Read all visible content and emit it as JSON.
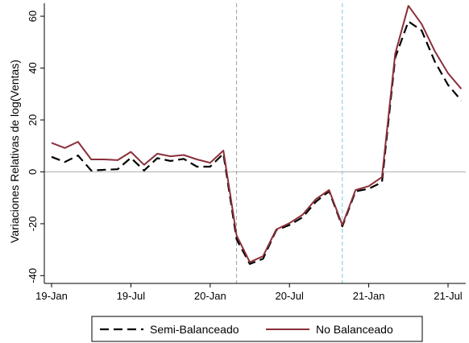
{
  "chart_data": {
    "type": "line",
    "title": "",
    "xlabel": "",
    "ylabel": "Variaciones Relativas de log(Ventas)",
    "x": [
      "2019-01",
      "2019-02",
      "2019-03",
      "2019-04",
      "2019-05",
      "2019-06",
      "2019-07",
      "2019-08",
      "2019-09",
      "2019-10",
      "2019-11",
      "2019-12",
      "2020-01",
      "2020-02",
      "2020-03",
      "2020-04",
      "2020-05",
      "2020-06",
      "2020-07",
      "2020-08",
      "2020-09",
      "2020-10",
      "2020-11",
      "2020-12",
      "2021-01",
      "2021-02",
      "2021-03",
      "2021-04",
      "2021-05",
      "2021-06",
      "2021-07",
      "2021-08"
    ],
    "x_ticks": [
      "19-Jan",
      "19-Jul",
      "20-Jan",
      "20-Jul",
      "21-Jan",
      "21-Jul"
    ],
    "y_ticks": [
      -40,
      -20,
      0,
      20,
      40,
      60
    ],
    "ylim": [
      -43,
      65
    ],
    "grid": false,
    "legend_position": "bottom",
    "reference_lines": {
      "horizontal_y": 0,
      "vertical": [
        {
          "x": "2020-03",
          "color": "#a0a0a0"
        },
        {
          "x": "2020-11",
          "color": "#7ec8e3"
        }
      ]
    },
    "series": [
      {
        "name": "Semi-Balanceado",
        "color": "#000000",
        "style": "dashed",
        "values": [
          5.8,
          3.8,
          6.3,
          0.5,
          0.8,
          1.0,
          5.4,
          0.5,
          5.3,
          4.2,
          5.0,
          2.0,
          2.0,
          7.0,
          -26.0,
          -35.5,
          -33.5,
          -22.5,
          -20.5,
          -17.5,
          -11.5,
          -7.5,
          -21.0,
          -7.5,
          -6.5,
          -4.0,
          44.0,
          58.0,
          54.5,
          42.5,
          33.5,
          27.5
        ]
      },
      {
        "name": "No Balanceado",
        "color": "#8b2f3a",
        "style": "solid",
        "values": [
          11.2,
          9.2,
          11.6,
          4.8,
          4.8,
          4.5,
          7.7,
          2.7,
          7.0,
          6.0,
          6.5,
          4.8,
          3.5,
          8.2,
          -24.5,
          -34.8,
          -32.5,
          -22.2,
          -19.8,
          -16.5,
          -10.5,
          -7.0,
          -20.5,
          -7.0,
          -5.5,
          -2.0,
          45.5,
          64.0,
          57.0,
          46.5,
          38.0,
          32.0
        ]
      }
    ]
  }
}
